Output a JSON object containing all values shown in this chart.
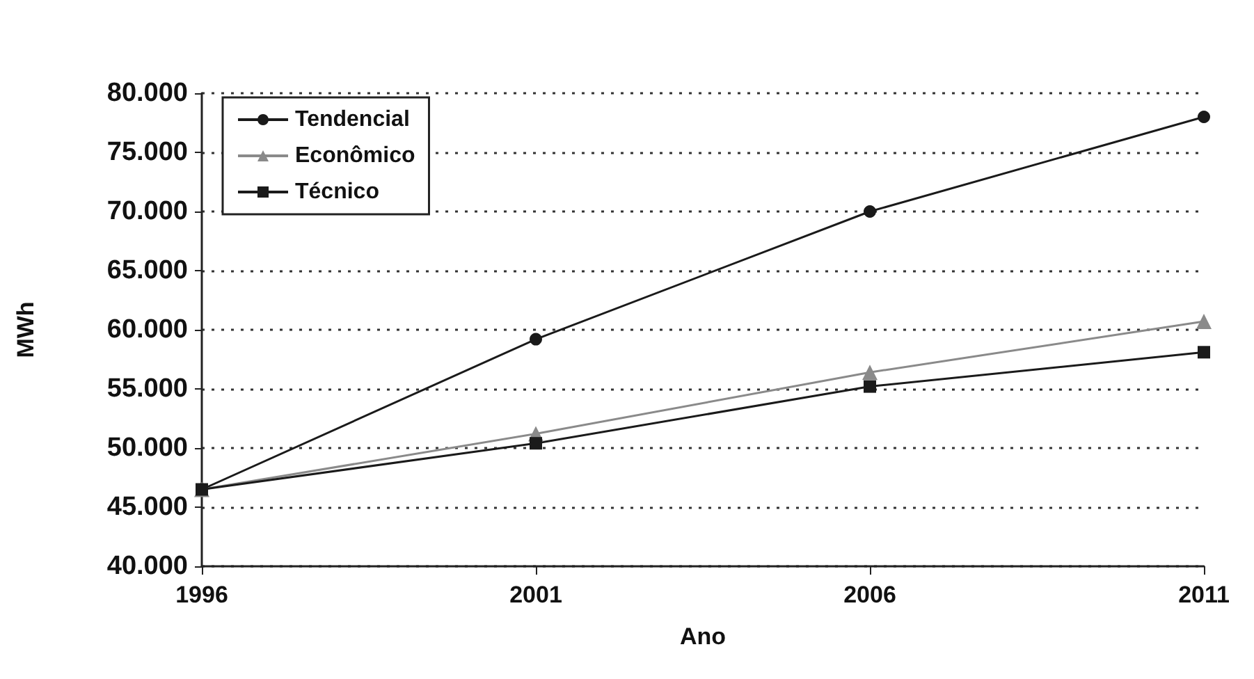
{
  "chart_data": {
    "type": "line",
    "xlabel": "Ano",
    "ylabel": "MWh",
    "x": [
      1996,
      2001,
      2006,
      2011
    ],
    "series": [
      {
        "name": "Tendencial",
        "color": "#1a1a1a",
        "marker": "circle",
        "values": [
          46500,
          59200,
          70000,
          78000
        ]
      },
      {
        "name": "Econômico",
        "color": "#8a8a8a",
        "marker": "triangle",
        "values": [
          46500,
          51200,
          56400,
          60700
        ]
      },
      {
        "name": "Técnico",
        "color": "#1a1a1a",
        "marker": "square",
        "values": [
          46500,
          50400,
          55200,
          58100
        ]
      }
    ],
    "xlim": [
      1996,
      2011
    ],
    "xticks": [
      1996,
      2001,
      2006,
      2011
    ],
    "ylim": [
      40000,
      80000
    ],
    "yticks": [
      {
        "value": 40000,
        "label": "40.000"
      },
      {
        "value": 45000,
        "label": "45.000"
      },
      {
        "value": 50000,
        "label": "50.000"
      },
      {
        "value": 55000,
        "label": "55.000"
      },
      {
        "value": 60000,
        "label": "60.000"
      },
      {
        "value": 65000,
        "label": "65.000"
      },
      {
        "value": 70000,
        "label": "70.000"
      },
      {
        "value": 75000,
        "label": "75.000"
      },
      {
        "value": 80000,
        "label": "80.000"
      }
    ],
    "grid": "y",
    "legend": "top left"
  }
}
